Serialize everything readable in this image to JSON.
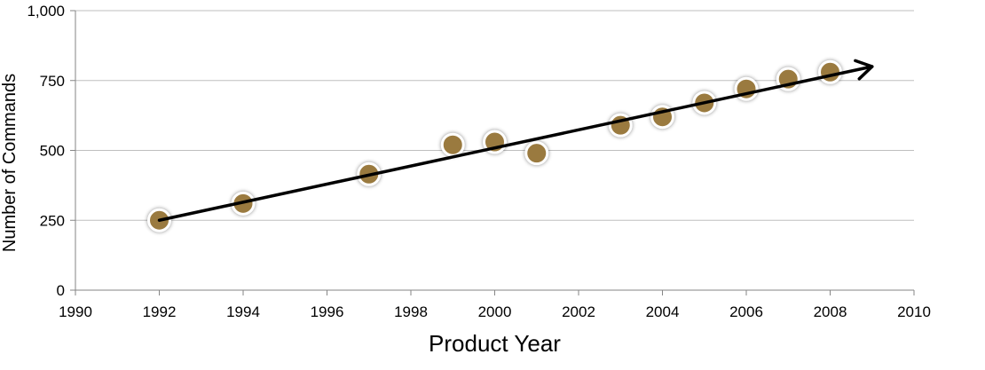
{
  "chart_data": {
    "type": "scatter",
    "title": "",
    "xlabel": "Product Year",
    "ylabel": "Number of Commands",
    "xlim": [
      1990,
      2010
    ],
    "ylim": [
      0,
      1000
    ],
    "x_ticks": [
      1990,
      1992,
      1994,
      1996,
      1998,
      2000,
      2002,
      2004,
      2006,
      2008,
      2010
    ],
    "x_tick_labels": [
      "1990",
      "1992",
      "1994",
      "1996",
      "1998",
      "2000",
      "2002",
      "2004",
      "2006",
      "2008",
      "2010"
    ],
    "y_ticks": [
      0,
      250,
      500,
      750,
      1000
    ],
    "y_tick_labels": [
      "0",
      "250",
      "500",
      "750",
      "1,000"
    ],
    "grid": "horizontal",
    "legend": "none",
    "series": [
      {
        "x": [
          1992,
          1994,
          1997,
          1999,
          2000,
          2001,
          2003,
          2004,
          2005,
          2006,
          2007,
          2008
        ],
        "y": [
          250,
          310,
          415,
          520,
          530,
          490,
          590,
          620,
          670,
          720,
          755,
          780
        ],
        "marker_color": "#9A7A3F",
        "marker_edge_color": "#FFFFFF"
      }
    ],
    "trend_arrow": {
      "x": [
        1992,
        2009
      ],
      "y": [
        250,
        800
      ],
      "color": "#000000"
    }
  }
}
